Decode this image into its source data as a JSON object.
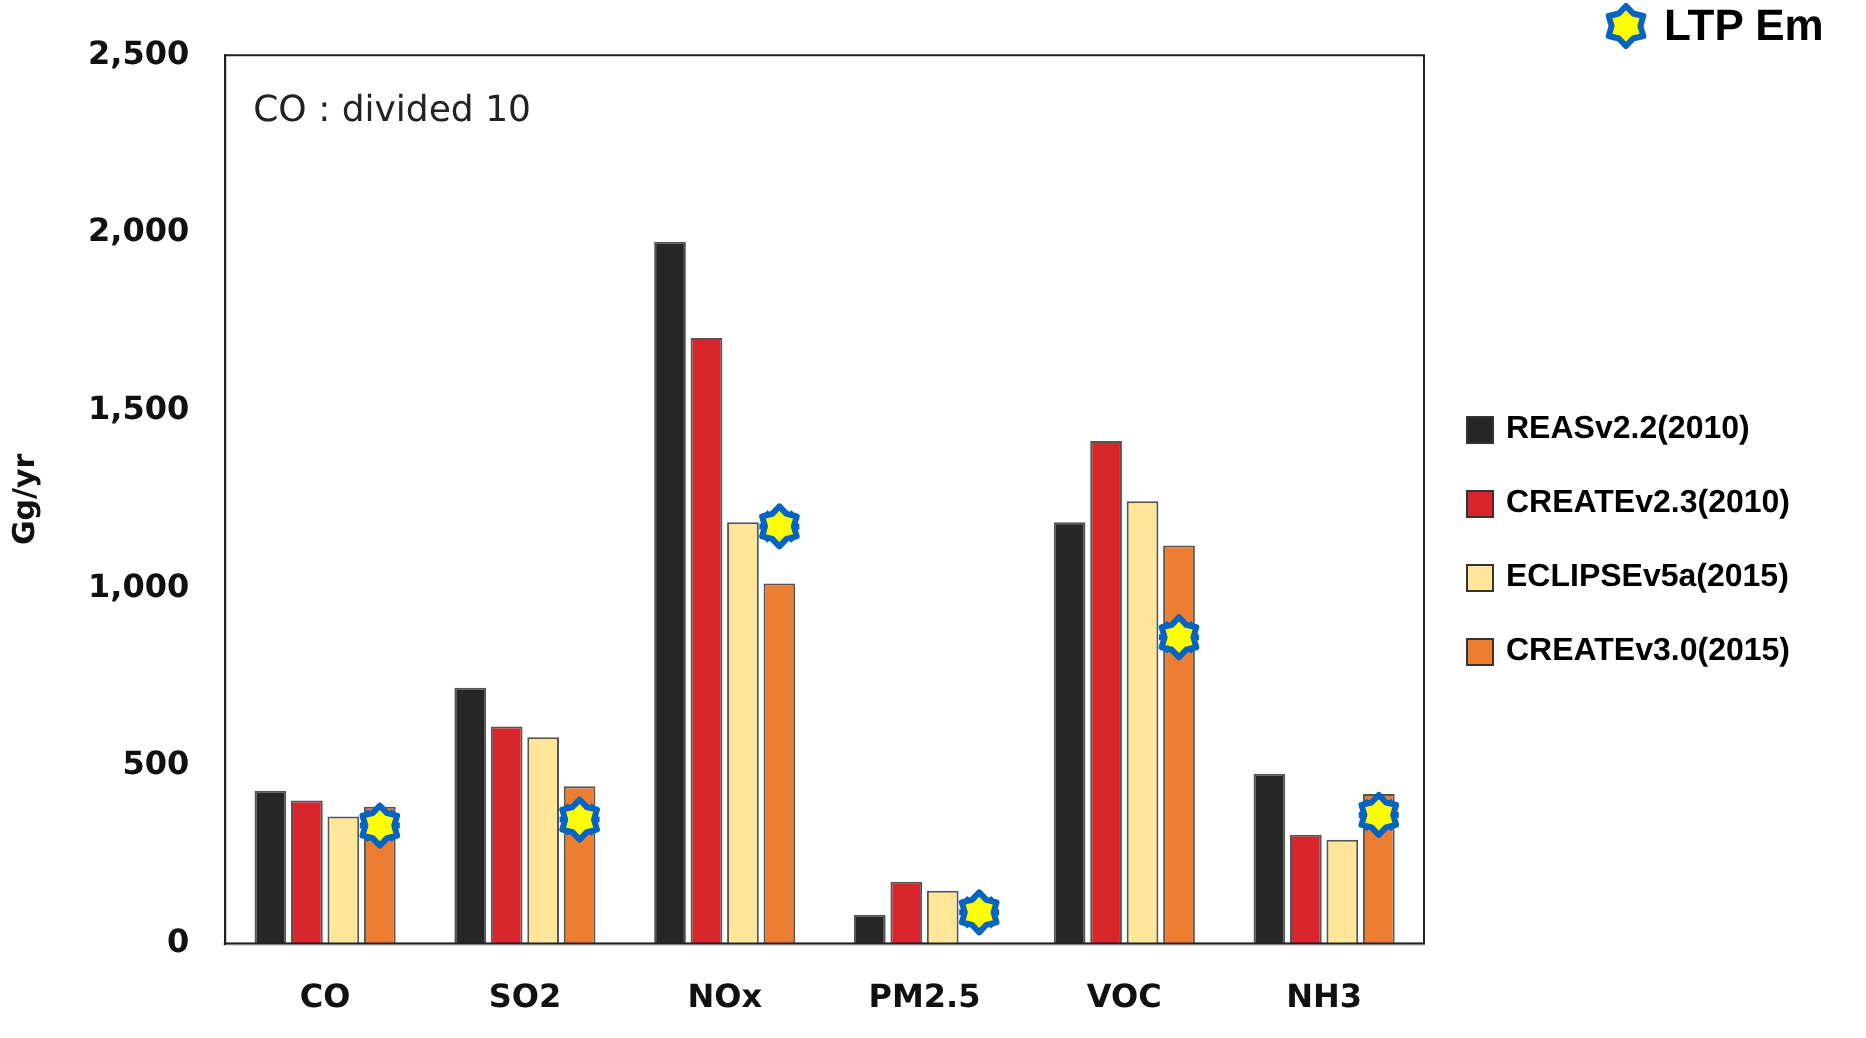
{
  "chart_data": {
    "type": "bar",
    "ylabel": "Gg/yr",
    "annotations": [
      "CO : divided 10"
    ],
    "categories": [
      "CO",
      "SO2",
      "NOx",
      "PM2.5",
      "VOC",
      "NH3"
    ],
    "series": [
      {
        "name": "REASv2.2(2010)",
        "color": "#262626",
        "values": [
          430,
          720,
          1975,
          81,
          1186,
          478
        ]
      },
      {
        "name": "CREATEv2.3(2010)",
        "color": "#d9262c",
        "values": [
          403,
          611,
          1704,
          174,
          1414,
          306
        ]
      },
      {
        "name": "ECLIPSEv5a(2015)",
        "color": "#ffe699",
        "values": [
          358,
          581,
          1186,
          149,
          1245,
          292
        ]
      },
      {
        "name": "CREATEv3.0(2015)",
        "color": "#ed7d31",
        "values": [
          385,
          443,
          1013,
          null,
          1120,
          421
        ]
      },
      {
        "type": "scatter",
        "name": "LTP Em",
        "color": "#0563c1",
        "x": [
          "CO",
          "SO2",
          "NOx",
          "PM2.5",
          "VOC",
          "NH3"
        ],
        "values": [
          332,
          349,
          1174,
          88,
          862,
          362
        ]
      }
    ],
    "ylim": [
      0,
      2500
    ],
    "yticks": [
      {
        "value": 0,
        "label": "0"
      },
      {
        "value": 500,
        "label": "500"
      },
      {
        "value": 1000,
        "label": "1,000"
      },
      {
        "value": 1500,
        "label": "1,500"
      },
      {
        "value": 2000,
        "label": "2,000"
      },
      {
        "value": 2500,
        "label": "2,500"
      }
    ],
    "grid": false,
    "legend": "right"
  }
}
